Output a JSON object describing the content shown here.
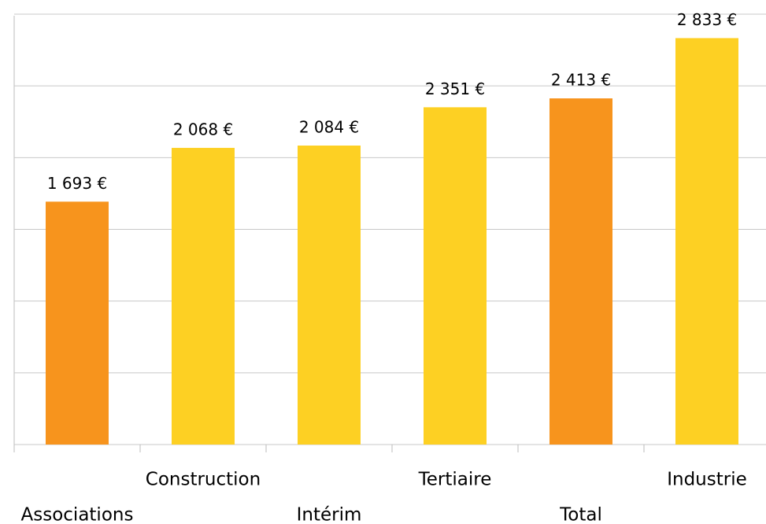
{
  "chart_data": {
    "type": "bar",
    "categories": [
      "Associations",
      "Construction",
      "Intérim",
      "Tertiaire",
      "Total",
      "Industrie"
    ],
    "values": [
      1693,
      2068,
      2084,
      2351,
      2413,
      2833
    ],
    "value_labels": [
      "1 693 €",
      "2 068 €",
      "2 084 €",
      "2 351 €",
      "2 413 €",
      "2 833 €"
    ],
    "colors": [
      "#f7941d",
      "#fdd023",
      "#fdd023",
      "#fdd023",
      "#f7941d",
      "#fdd023"
    ],
    "ylim": [
      0,
      3000
    ],
    "yticks": [
      0,
      500,
      1000,
      1500,
      2000,
      2500,
      3000
    ],
    "grid": true
  }
}
